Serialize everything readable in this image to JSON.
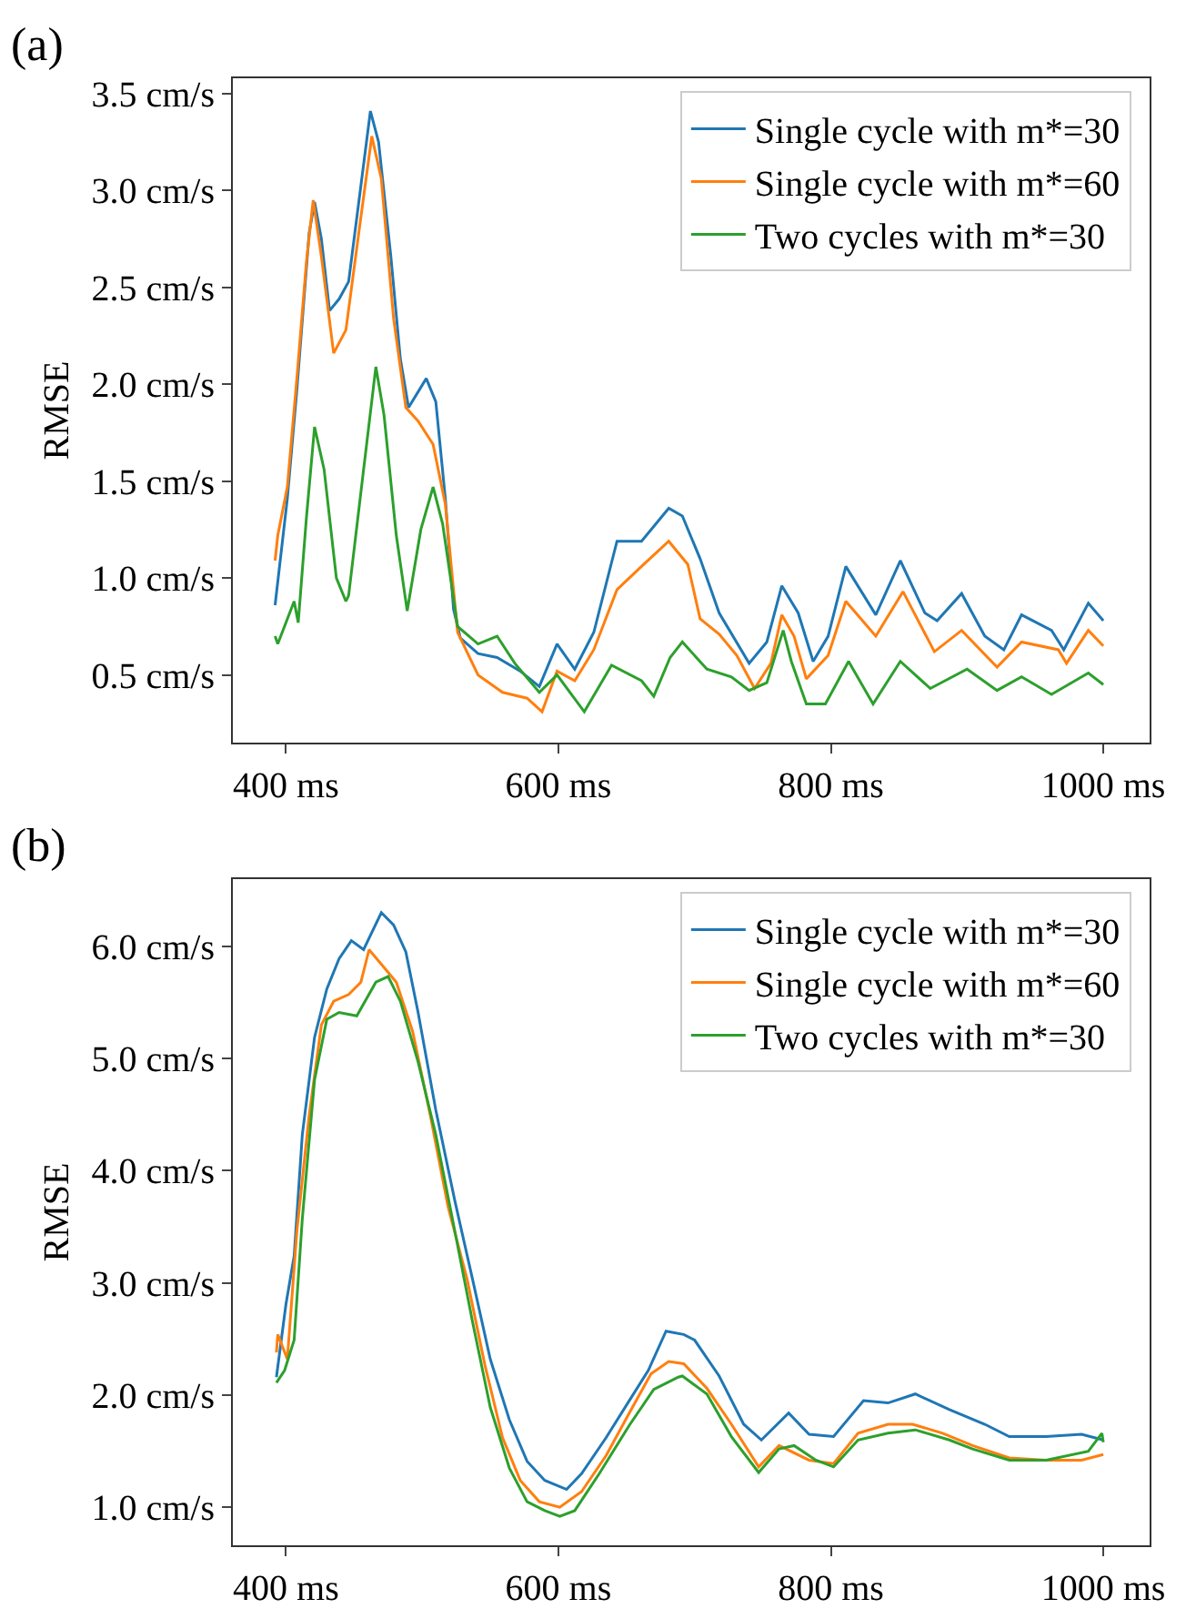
{
  "chart_data": [
    {
      "type": "line",
      "title": "(a)",
      "ylabel": "RMSE",
      "legend": "top right",
      "xlim": [
        361,
        1034
      ],
      "ylim": [
        0.15,
        3.58
      ],
      "xticks": [
        {
          "value": 400,
          "label": "400 ms"
        },
        {
          "value": 600,
          "label": "600 ms"
        },
        {
          "value": 800,
          "label": "800 ms"
        },
        {
          "value": 1000,
          "label": "1000 ms"
        }
      ],
      "yticks": [
        {
          "value": 0.5,
          "label": "0.5 cm/s"
        },
        {
          "value": 1.0,
          "label": "1.0 cm/s"
        },
        {
          "value": 1.5,
          "label": "1.5 cm/s"
        },
        {
          "value": 2.0,
          "label": "2.0 cm/s"
        },
        {
          "value": 2.5,
          "label": "2.5 cm/s"
        },
        {
          "value": 3.0,
          "label": "3.0 cm/s"
        },
        {
          "value": 3.5,
          "label": "3.5 cm/s"
        }
      ],
      "series": [
        {
          "name": "Single cycle with m*=30",
          "color": "#1f77b4",
          "x": [
            392,
            401,
            408,
            417,
            421,
            426,
            432,
            439,
            446,
            454,
            462,
            468,
            477,
            484,
            490,
            503,
            510,
            517,
            523,
            528,
            541,
            555,
            572,
            586,
            599,
            612,
            626,
            643,
            661,
            681,
            691,
            704,
            718,
            740,
            753,
            764,
            776,
            787,
            798,
            811,
            833,
            851,
            869,
            878,
            896,
            913,
            927,
            940,
            962,
            971,
            989,
            1000
          ],
          "values": [
            0.86,
            1.41,
            1.97,
            2.78,
            2.94,
            2.75,
            2.38,
            2.44,
            2.53,
            2.97,
            3.41,
            3.25,
            2.66,
            2.13,
            1.88,
            2.03,
            1.91,
            1.41,
            0.84,
            0.69,
            0.61,
            0.59,
            0.52,
            0.44,
            0.66,
            0.53,
            0.72,
            1.19,
            1.19,
            1.36,
            1.32,
            1.1,
            0.82,
            0.56,
            0.67,
            0.96,
            0.82,
            0.57,
            0.7,
            1.06,
            0.81,
            1.09,
            0.82,
            0.78,
            0.92,
            0.7,
            0.63,
            0.81,
            0.73,
            0.63,
            0.87,
            0.78
          ]
        },
        {
          "name": "Single cycle with m*=60",
          "color": "#ff7f0e",
          "x": [
            392,
            394,
            401,
            408,
            415,
            420,
            426,
            435,
            444,
            454,
            463,
            470,
            479,
            488,
            497,
            508,
            517,
            526,
            541,
            559,
            577,
            588,
            599,
            612,
            626,
            643,
            661,
            681,
            695,
            704,
            718,
            731,
            744,
            756,
            764,
            773,
            782,
            798,
            811,
            833,
            853,
            876,
            896,
            922,
            940,
            967,
            973,
            989,
            1000
          ],
          "values": [
            1.09,
            1.22,
            1.47,
            2.03,
            2.63,
            2.95,
            2.66,
            2.16,
            2.28,
            2.81,
            3.28,
            3.06,
            2.34,
            1.88,
            1.81,
            1.69,
            1.38,
            0.72,
            0.5,
            0.41,
            0.38,
            0.31,
            0.52,
            0.47,
            0.63,
            0.94,
            1.06,
            1.19,
            1.07,
            0.79,
            0.71,
            0.6,
            0.43,
            0.56,
            0.81,
            0.7,
            0.48,
            0.6,
            0.88,
            0.7,
            0.93,
            0.62,
            0.73,
            0.54,
            0.67,
            0.63,
            0.56,
            0.73,
            0.65
          ]
        },
        {
          "name": "Two cycles with m*=30",
          "color": "#2ca02c",
          "x": [
            392,
            394,
            406,
            409,
            415,
            421,
            428,
            437,
            444,
            446,
            457,
            466,
            472,
            481,
            489,
            499,
            508,
            515,
            526,
            541,
            555,
            568,
            586,
            599,
            619,
            639,
            661,
            670,
            682,
            691,
            709,
            727,
            740,
            753,
            765,
            771,
            782,
            796,
            813,
            831,
            851,
            873,
            900,
            922,
            940,
            962,
            989,
            1000
          ],
          "values": [
            0.7,
            0.66,
            0.88,
            0.77,
            1.31,
            1.78,
            1.56,
            1.0,
            0.88,
            0.91,
            1.56,
            2.09,
            1.84,
            1.22,
            0.83,
            1.25,
            1.47,
            1.28,
            0.75,
            0.66,
            0.7,
            0.56,
            0.41,
            0.5,
            0.31,
            0.55,
            0.47,
            0.39,
            0.59,
            0.67,
            0.53,
            0.49,
            0.42,
            0.46,
            0.73,
            0.57,
            0.35,
            0.35,
            0.57,
            0.35,
            0.57,
            0.43,
            0.53,
            0.42,
            0.49,
            0.4,
            0.51,
            0.45
          ]
        }
      ]
    },
    {
      "type": "line",
      "title": "(b)",
      "ylabel": "RMSE",
      "legend": "top right",
      "xlim": [
        361,
        1034
      ],
      "ylim": [
        0.66,
        6.6
      ],
      "xticks": [
        {
          "value": 400,
          "label": "400 ms"
        },
        {
          "value": 600,
          "label": "600 ms"
        },
        {
          "value": 800,
          "label": "800 ms"
        },
        {
          "value": 1000,
          "label": "1000 ms"
        }
      ],
      "yticks": [
        {
          "value": 1.0,
          "label": "1.0 cm/s"
        },
        {
          "value": 2.0,
          "label": "2.0 cm/s"
        },
        {
          "value": 3.0,
          "label": "3.0 cm/s"
        },
        {
          "value": 4.0,
          "label": "4.0 cm/s"
        },
        {
          "value": 5.0,
          "label": "5.0 cm/s"
        },
        {
          "value": 6.0,
          "label": "6.0 cm/s"
        }
      ],
      "series": [
        {
          "name": "Single cycle with m*=30",
          "color": "#1f77b4",
          "x": [
            393,
            400,
            406,
            412,
            421,
            430,
            439,
            448,
            457,
            470,
            479,
            488,
            497,
            510,
            524,
            537,
            550,
            564,
            577,
            590,
            606,
            617,
            635,
            652,
            666,
            679,
            692,
            700,
            718,
            736,
            749,
            769,
            784,
            802,
            824,
            842,
            862,
            887,
            913,
            931,
            958,
            984,
            1000
          ],
          "values": [
            2.16,
            2.81,
            3.24,
            4.32,
            5.19,
            5.62,
            5.89,
            6.05,
            5.97,
            6.3,
            6.19,
            5.95,
            5.41,
            4.54,
            3.73,
            3.03,
            2.32,
            1.78,
            1.41,
            1.24,
            1.16,
            1.3,
            1.62,
            1.95,
            2.22,
            2.57,
            2.54,
            2.49,
            2.17,
            1.74,
            1.6,
            1.84,
            1.65,
            1.63,
            1.95,
            1.93,
            2.01,
            1.87,
            1.74,
            1.63,
            1.63,
            1.65,
            1.6
          ]
        },
        {
          "name": "Single cycle with m*=60",
          "color": "#ff7f0e",
          "x": [
            393,
            394,
            401,
            408,
            417,
            426,
            435,
            446,
            455,
            461,
            470,
            481,
            493,
            506,
            519,
            533,
            546,
            559,
            572,
            586,
            601,
            617,
            635,
            652,
            668,
            681,
            692,
            709,
            727,
            747,
            762,
            784,
            802,
            820,
            842,
            860,
            882,
            904,
            931,
            958,
            984,
            1000
          ],
          "values": [
            2.38,
            2.54,
            2.32,
            3.46,
            4.49,
            5.3,
            5.51,
            5.57,
            5.68,
            5.97,
            5.84,
            5.68,
            5.24,
            4.49,
            3.68,
            3.03,
            2.27,
            1.62,
            1.24,
            1.05,
            1.0,
            1.14,
            1.46,
            1.84,
            2.19,
            2.3,
            2.28,
            2.06,
            1.74,
            1.36,
            1.55,
            1.42,
            1.39,
            1.66,
            1.74,
            1.74,
            1.66,
            1.55,
            1.44,
            1.42,
            1.42,
            1.47
          ]
        },
        {
          "name": "Two cycles with m*=30",
          "color": "#2ca02c",
          "x": [
            393,
            399,
            406,
            412,
            421,
            430,
            439,
            452,
            466,
            475,
            484,
            497,
            510,
            524,
            537,
            550,
            564,
            577,
            590,
            601,
            612,
            630,
            652,
            670,
            688,
            691,
            709,
            727,
            747,
            762,
            773,
            789,
            802,
            820,
            842,
            862,
            887,
            904,
            931,
            958,
            989,
            999,
            1000
          ],
          "values": [
            2.11,
            2.22,
            2.49,
            3.57,
            4.81,
            5.35,
            5.41,
            5.38,
            5.68,
            5.73,
            5.51,
            4.97,
            4.32,
            3.46,
            2.65,
            1.89,
            1.35,
            1.05,
            0.97,
            0.92,
            0.97,
            1.3,
            1.73,
            2.05,
            2.16,
            2.17,
            2.01,
            1.63,
            1.31,
            1.52,
            1.55,
            1.42,
            1.36,
            1.6,
            1.66,
            1.69,
            1.6,
            1.52,
            1.42,
            1.42,
            1.5,
            1.66,
            1.58
          ]
        }
      ]
    }
  ]
}
